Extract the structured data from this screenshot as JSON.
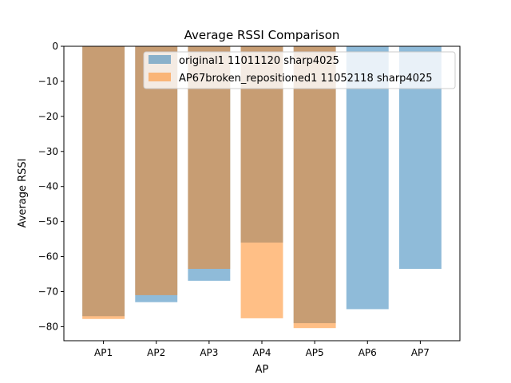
{
  "chart_data": {
    "type": "bar",
    "title": "Average RSSI Comparison",
    "xlabel": "AP",
    "ylabel": "Average RSSI",
    "categories": [
      "AP1",
      "AP2",
      "AP3",
      "AP4",
      "AP5",
      "AP6",
      "AP7"
    ],
    "ylim": [
      -84,
      0
    ],
    "yticks": [
      0,
      -10,
      -20,
      -30,
      -40,
      -50,
      -60,
      -70,
      -80
    ],
    "grid": false,
    "legend_position": "top-right",
    "series": [
      {
        "name": "original1 11011120 sharp4025",
        "color": "#1f77b4",
        "alpha": 0.5,
        "values": [
          -77.0,
          -73.0,
          -66.9,
          -56.0,
          -79.0,
          -75.0,
          -63.5
        ]
      },
      {
        "name": "AP67broken_repositioned1 11052118 sharp4025",
        "color": "#ff7f0e",
        "alpha": 0.5,
        "values": [
          -77.8,
          -71.0,
          -63.5,
          -77.6,
          -80.4,
          null,
          null
        ]
      }
    ]
  }
}
